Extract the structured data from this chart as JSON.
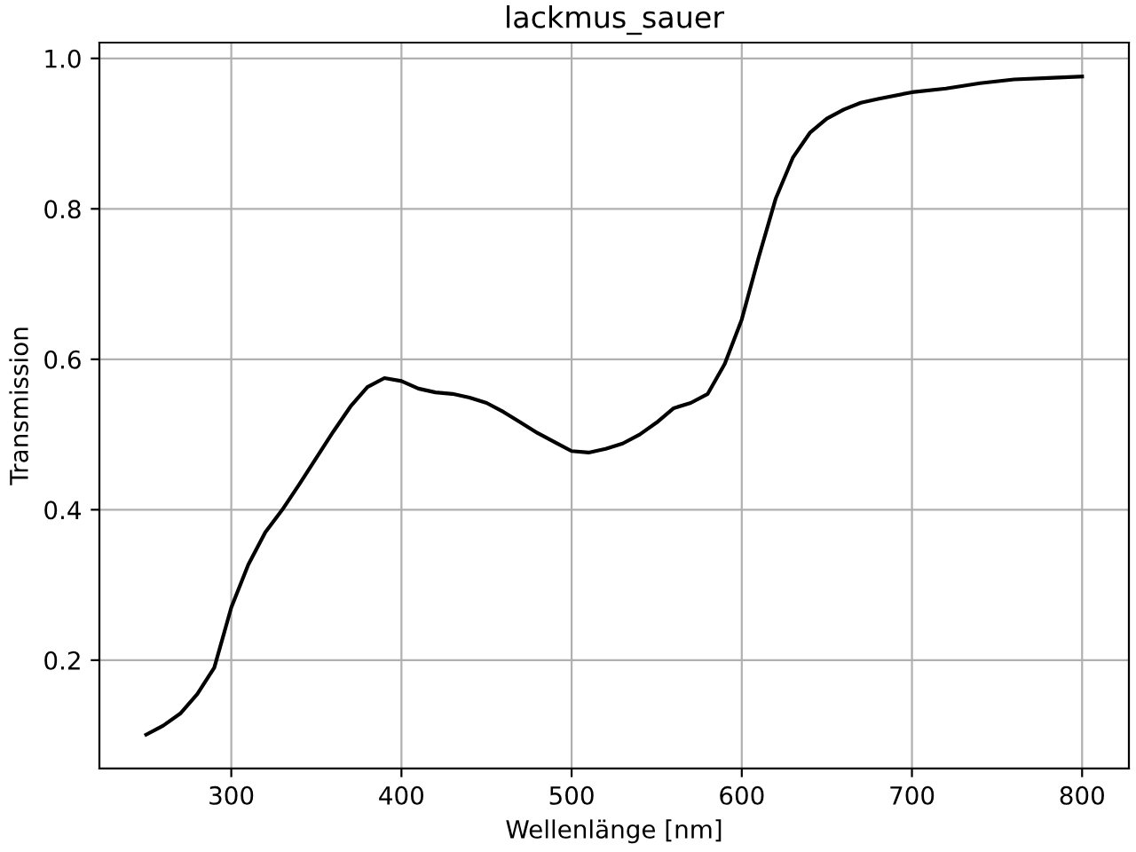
{
  "chart_data": {
    "type": "line",
    "title": "lackmus_sauer",
    "xlabel": "Wellenlänge [nm]",
    "ylabel": "Transmission",
    "series": [
      {
        "color": "#000000",
        "x": [
          250,
          260,
          270,
          280,
          290,
          300,
          310,
          320,
          330,
          340,
          350,
          360,
          370,
          380,
          390,
          400,
          410,
          420,
          430,
          440,
          450,
          460,
          470,
          480,
          490,
          500,
          510,
          520,
          530,
          540,
          550,
          560,
          570,
          580,
          590,
          600,
          610,
          620,
          630,
          640,
          650,
          660,
          670,
          680,
          700,
          720,
          740,
          760,
          780,
          800
        ],
        "values": [
          0.101,
          0.113,
          0.129,
          0.155,
          0.19,
          0.27,
          0.327,
          0.37,
          0.4,
          0.434,
          0.469,
          0.504,
          0.537,
          0.563,
          0.575,
          0.571,
          0.561,
          0.556,
          0.554,
          0.549,
          0.542,
          0.53,
          0.516,
          0.502,
          0.49,
          0.478,
          0.476,
          0.481,
          0.488,
          0.5,
          0.516,
          0.535,
          0.542,
          0.554,
          0.594,
          0.653,
          0.736,
          0.814,
          0.868,
          0.901,
          0.92,
          0.932,
          0.941,
          0.946,
          0.955,
          0.96,
          0.967,
          0.972,
          0.974,
          0.976
        ]
      }
    ],
    "xlim": [
      222.5,
      827.5
    ],
    "xticks": [
      300,
      400,
      500,
      600,
      700,
      800
    ],
    "ylim": [
      0.056,
      1.021
    ],
    "yticks": [
      {
        "value": 0.2,
        "label": "0.2"
      },
      {
        "value": 0.4,
        "label": "0.4"
      },
      {
        "value": 0.6,
        "label": "0.6"
      },
      {
        "value": 0.8,
        "label": "0.8"
      },
      {
        "value": 1.0,
        "label": "1.0"
      }
    ],
    "grid": true,
    "marker": "none",
    "line_style": "solid"
  }
}
